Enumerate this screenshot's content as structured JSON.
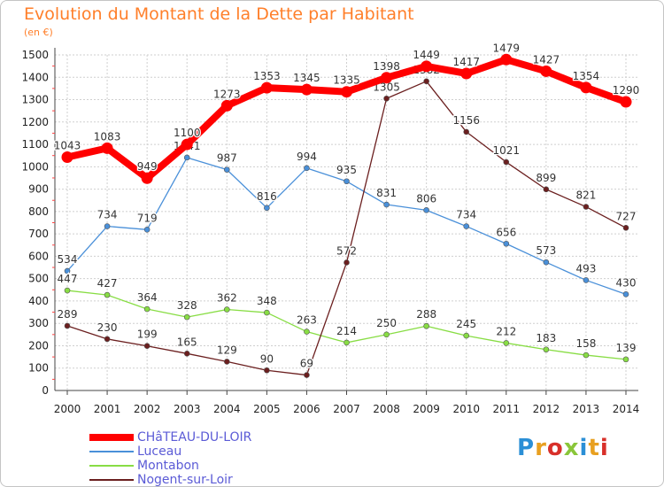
{
  "chart_data": {
    "type": "line",
    "title": "Evolution du Montant de la Dette par Habitant",
    "unit": "(en €)",
    "x": [
      "2000",
      "2001",
      "2002",
      "2003",
      "2004",
      "2005",
      "2006",
      "2007",
      "2008",
      "2009",
      "2010",
      "2011",
      "2012",
      "2013",
      "2014"
    ],
    "ylim": [
      0,
      1500
    ],
    "yticks": [
      "0",
      "100",
      "200",
      "300",
      "400",
      "500",
      "600",
      "700",
      "800",
      "900",
      "1000",
      "1100",
      "1200",
      "1300",
      "1400",
      "1500"
    ],
    "grid": true,
    "legend_position": "bottom-left",
    "series": [
      {
        "name": "CHâTEAU-DU-LOIR",
        "color": "#ff0000",
        "values": [
          1043,
          1083,
          949,
          1100,
          1273,
          1353,
          1345,
          1335,
          1398,
          1449,
          1417,
          1479,
          1427,
          1354,
          1290
        ]
      },
      {
        "name": "Luceau",
        "color": "#4a90d9",
        "values": [
          534,
          734,
          719,
          1041,
          987,
          816,
          994,
          935,
          831,
          806,
          734,
          656,
          573,
          493,
          430
        ]
      },
      {
        "name": "Montabon",
        "color": "#88dd44",
        "values": [
          447,
          427,
          364,
          328,
          362,
          348,
          263,
          214,
          250,
          288,
          245,
          212,
          183,
          158,
          139
        ]
      },
      {
        "name": "Nogent-sur-Loir",
        "color": "#6b1f1f",
        "values": [
          289,
          230,
          199,
          165,
          129,
          90,
          69,
          572,
          1305,
          1382,
          1156,
          1021,
          899,
          821,
          727
        ]
      }
    ]
  },
  "logo": {
    "letters": [
      "P",
      "r",
      "o",
      "x",
      "i",
      "t",
      "i"
    ],
    "colors": [
      "#2b8fd6",
      "#e8a020",
      "#d8302a",
      "#8ac63a",
      "#2b8fd6",
      "#e8a020",
      "#d8302a"
    ]
  }
}
